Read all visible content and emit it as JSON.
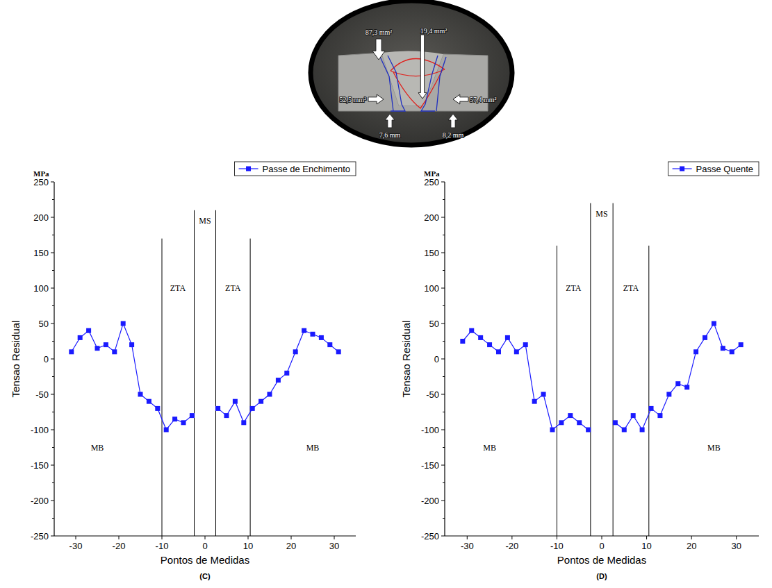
{
  "photo": {
    "labels": [
      "87,3 mm²",
      "19,4 mm²",
      "52,5 mm²",
      "57,4 mm²",
      "7,6 mm",
      "8,2 mm"
    ]
  },
  "chart_data": [
    {
      "type": "line",
      "title": "(C)",
      "x_label": "Pontos de Medidas",
      "y_label": "Tensao Residual",
      "y_unit": "MPa",
      "x": [
        -31,
        -29,
        -27,
        -25,
        -23,
        -21,
        -19,
        -17,
        -15,
        -13,
        -11,
        -9,
        -7,
        -5,
        -3,
        0,
        3,
        5,
        7,
        9,
        11,
        13,
        15,
        17,
        19,
        21,
        23,
        25,
        27,
        29,
        31
      ],
      "series": [
        {
          "name": "Passe de Enchimento",
          "color": "#1a1aff",
          "marker": "square",
          "line_style": "solid",
          "values": [
            10,
            30,
            40,
            15,
            20,
            10,
            50,
            20,
            -50,
            -60,
            -70,
            -100,
            -85,
            -90,
            -80,
            null,
            -70,
            -80,
            -60,
            -90,
            -70,
            -60,
            -50,
            -30,
            -20,
            10,
            40,
            35,
            30,
            20,
            10
          ]
        }
      ],
      "xlim": [
        -35,
        35
      ],
      "xticks": [
        -30,
        -20,
        -10,
        0,
        10,
        20,
        30
      ],
      "ylim": [
        -250,
        250
      ],
      "yticks": [
        -250,
        -200,
        -150,
        -100,
        -50,
        0,
        50,
        100,
        150,
        200,
        250
      ],
      "grid": false,
      "legend": "top-right",
      "boundaries": [
        {
          "x": -10,
          "top": 170
        },
        {
          "x": -2.5,
          "top": 210
        },
        {
          "x": 2.5,
          "top": 210
        },
        {
          "x": 10.5,
          "top": 170
        }
      ],
      "zone_labels": [
        {
          "text": "ZTA",
          "x": -6.3,
          "y": 100
        },
        {
          "text": "MS",
          "x": 0,
          "y": 195
        },
        {
          "text": "ZTA",
          "x": 6.5,
          "y": 100
        },
        {
          "text": "MB",
          "x": -25,
          "y": -125
        },
        {
          "text": "MB",
          "x": 25,
          "y": -125
        }
      ]
    },
    {
      "type": "line",
      "title": "(D)",
      "x_label": "Pontos de Medidas",
      "y_label": "Tensao Residual",
      "y_unit": "MPa",
      "x": [
        -31,
        -29,
        -27,
        -25,
        -23,
        -21,
        -19,
        -17,
        -15,
        -13,
        -11,
        -9,
        -7,
        -5,
        -3,
        0,
        3,
        5,
        7,
        9,
        11,
        13,
        15,
        17,
        19,
        21,
        23,
        25,
        27,
        29,
        31
      ],
      "series": [
        {
          "name": "Passe Quente",
          "color": "#1a1aff",
          "marker": "square",
          "line_style": "solid",
          "values": [
            25,
            40,
            30,
            20,
            10,
            30,
            10,
            20,
            -60,
            -50,
            -100,
            -90,
            -80,
            -90,
            -100,
            null,
            -90,
            -100,
            -80,
            -100,
            -70,
            -80,
            -50,
            -35,
            -40,
            10,
            30,
            50,
            15,
            10,
            20
          ]
        }
      ],
      "xlim": [
        -35,
        35
      ],
      "xticks": [
        -30,
        -20,
        -10,
        0,
        10,
        20,
        30
      ],
      "ylim": [
        -250,
        250
      ],
      "yticks": [
        -250,
        -200,
        -150,
        -100,
        -50,
        0,
        50,
        100,
        150,
        200,
        250
      ],
      "grid": false,
      "legend": "top-right",
      "boundaries": [
        {
          "x": -10,
          "top": 160
        },
        {
          "x": -2.5,
          "top": 220
        },
        {
          "x": 2.5,
          "top": 220
        },
        {
          "x": 10.5,
          "top": 160
        }
      ],
      "zone_labels": [
        {
          "text": "ZTA",
          "x": -6.3,
          "y": 100
        },
        {
          "text": "MS",
          "x": 0,
          "y": 205
        },
        {
          "text": "ZTA",
          "x": 6.5,
          "y": 100
        },
        {
          "text": "MB",
          "x": -25,
          "y": -125
        },
        {
          "text": "MB",
          "x": 25,
          "y": -125
        }
      ]
    }
  ]
}
